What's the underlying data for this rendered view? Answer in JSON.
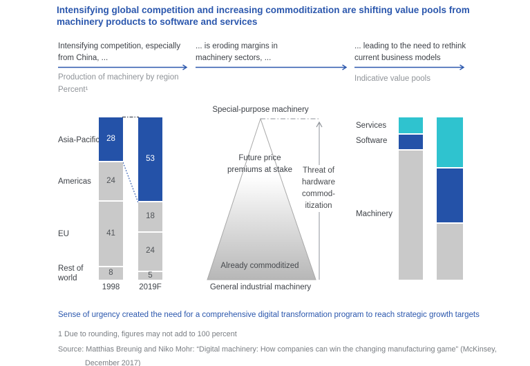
{
  "title": "Intensifying global competition and increasing commoditization are shifting value pools from\nmachinery products to software and services",
  "flow": {
    "steps": [
      {
        "label": "Intensifying competition, especially\nfrom China, ..."
      },
      {
        "label": "... is eroding margins in\nmachinery sectors, ..."
      },
      {
        "label": "... leading to the need to rethink\ncurrent business models"
      }
    ]
  },
  "captions": {
    "left": "Production of machinery by region\nPercent¹",
    "right": "Indicative value pools"
  },
  "pyramid": {
    "top_label": "Special-purpose machinery",
    "inner_top_label": "Future price\npremiums at stake",
    "inner_bottom_label": "Already commoditized",
    "bottom_label": "General industrial machinery",
    "arrow_label": "Threat of\nhardware\ncommod-\nitization"
  },
  "insight": "Sense of urgency created the need for a comprehensive digital transformation program to reach strategic growth targets",
  "footnote": "1 Due to rounding, figures may not add to 100 percent",
  "source": "Source: Matthias Breunig and Niko Mohr: “Digital machinery: How companies can win the changing manufacturing game” (McKinsey,\nDecember 2017)",
  "colors": {
    "accent_blue": "#2b57ad",
    "bar_blue": "#2452a8",
    "teal": "#2fc3cf",
    "bar_gray": "#c9c9c9",
    "value_text_gray": "#4f5357",
    "value_text_white": "#ffffff"
  },
  "chart_data": [
    {
      "type": "bar",
      "subtype": "stacked-column",
      "title": "Production of machinery by region, percent",
      "unit": "percent",
      "show_values": true,
      "legend_position": "left-labels",
      "categories": [
        "1998",
        "2019F"
      ],
      "series": [
        {
          "name": "Asia-Pacific",
          "label": "Asia-Pacific",
          "values": [
            28,
            53
          ],
          "color": "#2452a8",
          "value_color": "#ffffff"
        },
        {
          "name": "Americas",
          "label": "Americas",
          "values": [
            24,
            18
          ],
          "color": "#c9c9c9",
          "value_color": "#4f5357"
        },
        {
          "name": "EU",
          "label": "EU",
          "values": [
            41,
            24
          ],
          "color": "#c9c9c9",
          "value_color": "#4f5357"
        },
        {
          "name": "Rest of world",
          "label": "Rest of\nworld",
          "values": [
            8,
            5
          ],
          "color": "#c9c9c9",
          "value_color": "#4f5357"
        }
      ]
    },
    {
      "type": "bar",
      "subtype": "stacked-column",
      "title": "Indicative value pools",
      "unit": "percent (indicative, estimated from bar heights)",
      "show_values": false,
      "legend_position": "left-labels",
      "categories": [
        "",
        ""
      ],
      "series": [
        {
          "name": "Services",
          "label": "Services",
          "values": [
            10,
            31
          ],
          "color": "#2fc3cf",
          "value_color": "#4f5357"
        },
        {
          "name": "Software",
          "label": "Software",
          "values": [
            9,
            34
          ],
          "color": "#2452a8",
          "value_color": "#ffffff"
        },
        {
          "name": "Machinery",
          "label": "Machinery",
          "values": [
            81,
            35
          ],
          "color": "#c9c9c9",
          "value_color": "#4f5357"
        }
      ]
    }
  ]
}
